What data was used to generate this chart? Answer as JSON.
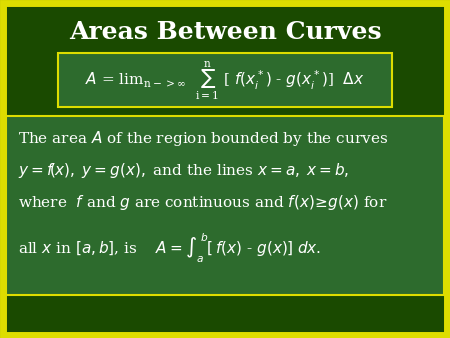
{
  "title": "Areas Between Curves",
  "title_color": "#FFFFFF",
  "title_fontsize": 18,
  "bg_color": "#1a4a00",
  "border_color": "#DDDD00",
  "formula_box_bg": "#2d6b2d",
  "body_box_bg": "#2d6b2d",
  "text_color": "#FFFFFF",
  "formula_fontsize": 11,
  "body_fontsize": 11,
  "body_lines": [
    "The area $\\mathit{A}$ of the region bounded by the curves",
    "$y = f\\!\\left(x\\right),\\; y = g(x),$ and the lines $x = a,\\; x = b,$",
    "where  $f$ and $g$ are continuous and $f(x) \\geq g(x)$ for",
    "all $x$ in $[a,b]$, is $\\quad A = \\int_a^{\\,b} [\\,f(x) \\text{ - } g(x)]\\; dx.$"
  ]
}
